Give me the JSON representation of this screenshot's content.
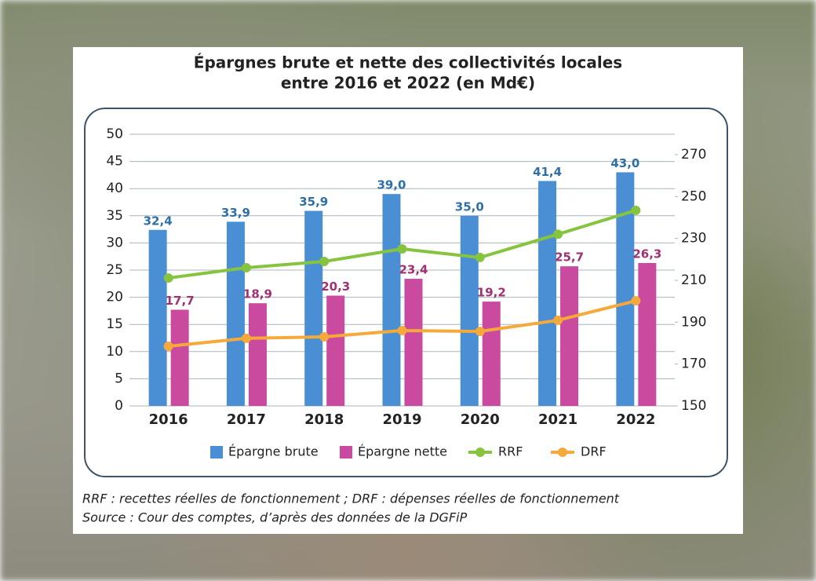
{
  "chart_data": {
    "type": "bar",
    "title_lines": [
      "Épargnes brute et nette des collectivités locales",
      "entre 2016 et 2022 (en Md€)"
    ],
    "categories": [
      "2016",
      "2017",
      "2018",
      "2019",
      "2020",
      "2021",
      "2022"
    ],
    "series": [
      {
        "name": "Épargne brute",
        "type": "bar",
        "axis": "y",
        "color": "#4a8fd4",
        "label_color": "#2f6fa8",
        "values": [
          32.4,
          33.9,
          35.9,
          39.0,
          35.0,
          41.4,
          43.0
        ],
        "value_labels": [
          "32,4",
          "33,9",
          "35,9",
          "39,0",
          "35,0",
          "41,4",
          "43,0"
        ]
      },
      {
        "name": "Épargne nette",
        "type": "bar",
        "axis": "y",
        "color": "#c94a9e",
        "label_color": "#a0306f",
        "values": [
          17.7,
          18.9,
          20.3,
          23.4,
          19.2,
          25.7,
          26.3
        ],
        "value_labels": [
          "17,7",
          "18,9",
          "20,3",
          "23,4",
          "19,2",
          "25,7",
          "26,3"
        ]
      },
      {
        "name": "RRF",
        "type": "line",
        "axis": "y2",
        "color": "#86c440",
        "values": [
          211.1,
          216,
          219,
          225,
          220.9,
          232,
          243.4
        ]
      },
      {
        "name": "DRF",
        "type": "line",
        "axis": "y2",
        "color": "#f5a93a",
        "values": [
          178.5,
          182.3,
          183,
          186,
          185.6,
          190.9,
          200.2
        ]
      }
    ],
    "ylim": [
      0,
      50
    ],
    "yticks": [
      0,
      5,
      10,
      15,
      20,
      25,
      30,
      35,
      40,
      45,
      50
    ],
    "y2lim": [
      150,
      279.75
    ],
    "y2ticks": [
      150,
      170,
      190,
      210,
      230,
      250,
      270
    ],
    "grid": true,
    "footnotes": [
      "RRF : recettes réelles de fonctionnement ; DRF : dépenses réelles de fonctionnement",
      "Source : Cour des comptes, d’après des données de la DGFiP"
    ]
  }
}
